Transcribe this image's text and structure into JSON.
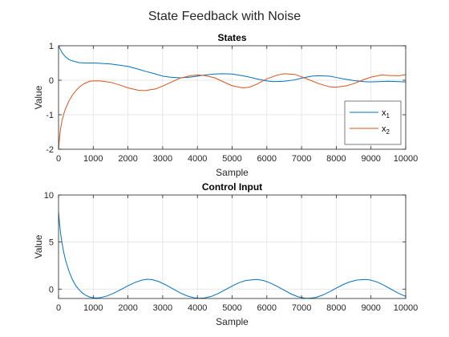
{
  "figure": {
    "title": "State Feedback with Noise"
  },
  "chart_data": [
    {
      "type": "line",
      "title": "States",
      "xlabel": "Sample",
      "ylabel": "Value",
      "xlim": [
        0,
        10000
      ],
      "ylim": [
        -2,
        1
      ],
      "xticks": [
        0,
        1000,
        2000,
        3000,
        4000,
        5000,
        6000,
        7000,
        8000,
        9000,
        10000
      ],
      "yticks": [
        -2,
        -1,
        0,
        1
      ],
      "grid": true,
      "legend": "bottom-right",
      "series": [
        {
          "name": "x",
          "name_sub": "1",
          "color": "#0072BD",
          "x": [
            0,
            50,
            100,
            200,
            300,
            400,
            600,
            800,
            1000,
            1200,
            1500,
            1800,
            2000,
            2300,
            2500,
            2800,
            3000,
            3200,
            3500,
            3800,
            4000,
            4200,
            4500,
            4700,
            5000,
            5300,
            5500,
            5700,
            6000,
            6200,
            6500,
            6800,
            7000,
            7300,
            7500,
            7800,
            8000,
            8200,
            8500,
            8800,
            9000,
            9200,
            9500,
            9800,
            10000
          ],
          "y": [
            1.0,
            0.9,
            0.8,
            0.68,
            0.6,
            0.56,
            0.51,
            0.5,
            0.5,
            0.49,
            0.47,
            0.43,
            0.4,
            0.32,
            0.26,
            0.18,
            0.12,
            0.09,
            0.07,
            0.09,
            0.12,
            0.15,
            0.18,
            0.19,
            0.18,
            0.13,
            0.09,
            0.04,
            -0.02,
            -0.04,
            -0.03,
            0.01,
            0.06,
            0.12,
            0.13,
            0.12,
            0.08,
            0.04,
            -0.01,
            -0.04,
            -0.05,
            -0.04,
            -0.03,
            -0.04,
            -0.05
          ]
        },
        {
          "name": "x",
          "name_sub": "2",
          "color": "#D95319",
          "x": [
            0,
            30,
            60,
            100,
            150,
            200,
            300,
            400,
            500,
            600,
            700,
            800,
            900,
            1000,
            1200,
            1500,
            1800,
            2000,
            2300,
            2500,
            2800,
            3000,
            3300,
            3500,
            3800,
            4000,
            4200,
            4500,
            4800,
            5000,
            5300,
            5500,
            5700,
            6000,
            6300,
            6500,
            6800,
            7000,
            7200,
            7500,
            7800,
            8000,
            8300,
            8500,
            8800,
            9000,
            9300,
            9500,
            9800,
            10000
          ],
          "y": [
            -2.0,
            -1.65,
            -1.4,
            -1.17,
            -0.98,
            -0.83,
            -0.6,
            -0.43,
            -0.3,
            -0.2,
            -0.12,
            -0.07,
            -0.03,
            -0.02,
            -0.02,
            -0.06,
            -0.15,
            -0.22,
            -0.29,
            -0.3,
            -0.25,
            -0.17,
            -0.03,
            0.06,
            0.13,
            0.15,
            0.14,
            0.07,
            -0.07,
            -0.16,
            -0.22,
            -0.2,
            -0.12,
            0.04,
            0.15,
            0.19,
            0.17,
            0.1,
            0.02,
            -0.1,
            -0.19,
            -0.2,
            -0.16,
            -0.1,
            0.02,
            0.09,
            0.15,
            0.14,
            0.13,
            0.16
          ]
        }
      ]
    },
    {
      "type": "line",
      "title": "Control Input",
      "xlabel": "Sample",
      "ylabel": "Value",
      "xlim": [
        0,
        10000
      ],
      "ylim": [
        -1,
        10
      ],
      "xticks": [
        0,
        1000,
        2000,
        3000,
        4000,
        5000,
        6000,
        7000,
        8000,
        9000,
        10000
      ],
      "yticks": [
        0,
        5,
        10
      ],
      "grid": true,
      "series": [
        {
          "color": "#0072BD",
          "x": [
            0,
            30,
            60,
            100,
            150,
            200,
            300,
            400,
            500,
            600,
            700,
            800,
            900,
            1000,
            1100,
            1200,
            1400,
            1600,
            1800,
            2000,
            2200,
            2400,
            2550,
            2700,
            2900,
            3100,
            3300,
            3500,
            3700,
            3900,
            4050,
            4200,
            4400,
            4600,
            4800,
            5000,
            5200,
            5400,
            5700,
            5900,
            6100,
            6300,
            6500,
            6700,
            6900,
            7100,
            7200,
            7400,
            7600,
            7800,
            8000,
            8200,
            8400,
            8600,
            8850,
            9000,
            9200,
            9400,
            9600,
            9800,
            10000
          ],
          "y": [
            8.2,
            6.9,
            5.9,
            4.9,
            3.9,
            3.1,
            1.9,
            1.0,
            0.35,
            -0.1,
            -0.45,
            -0.7,
            -0.85,
            -0.93,
            -0.95,
            -0.92,
            -0.73,
            -0.42,
            -0.05,
            0.35,
            0.7,
            0.95,
            1.05,
            1.0,
            0.78,
            0.42,
            0.02,
            -0.4,
            -0.72,
            -0.92,
            -0.98,
            -0.95,
            -0.78,
            -0.47,
            -0.08,
            0.33,
            0.68,
            0.92,
            1.02,
            0.92,
            0.65,
            0.28,
            -0.12,
            -0.52,
            -0.82,
            -0.97,
            -0.98,
            -0.9,
            -0.65,
            -0.3,
            0.1,
            0.48,
            0.78,
            0.96,
            1.02,
            0.95,
            0.72,
            0.35,
            -0.06,
            -0.46,
            -0.78
          ]
        }
      ]
    }
  ]
}
